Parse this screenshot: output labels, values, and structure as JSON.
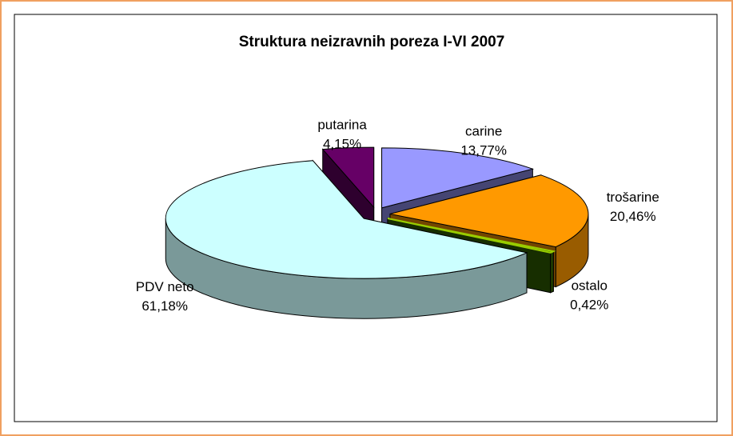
{
  "chart_data": {
    "type": "pie3d",
    "title": "Struktura neizravnih poreza I-VI 2007",
    "categories": [
      "carine",
      "trošarine",
      "ostalo",
      "PDV neto",
      "putarina"
    ],
    "values": [
      13.77,
      20.46,
      0.42,
      61.18,
      4.15
    ],
    "value_labels": [
      "13,77%",
      "20,46%",
      "0,42%",
      "61,18%",
      "4,15%"
    ],
    "colors": [
      "#9999ff",
      "#ff9900",
      "#336600",
      "#ccffff",
      "#660066"
    ]
  }
}
